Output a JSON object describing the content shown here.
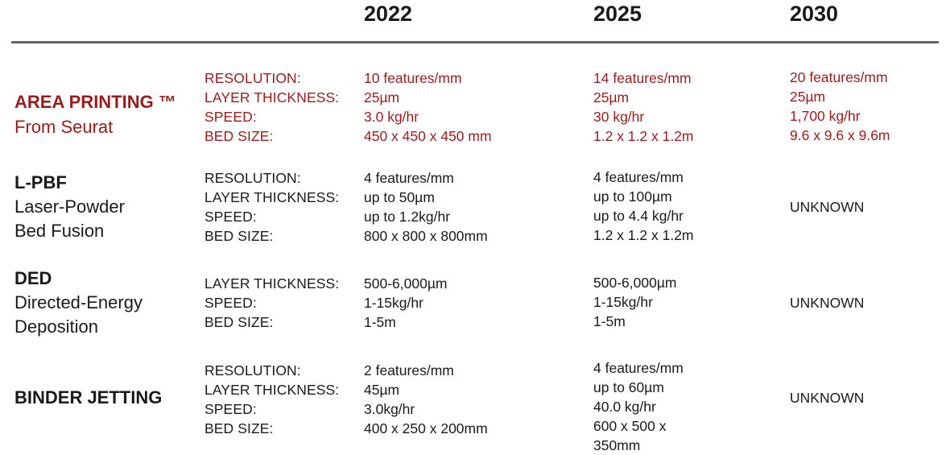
{
  "colors": {
    "accent": "#9b1c1c",
    "text": "#1a1a1a",
    "rule": "#666666"
  },
  "years": [
    "2022",
    "2025",
    "2030"
  ],
  "rows": [
    {
      "title": "AREA PRINTING ™",
      "subtitle": [
        "From Seurat"
      ],
      "labels": [
        "RESOLUTION:",
        "LAYER THICKNESS:",
        "SPEED:",
        "BED SIZE:"
      ],
      "v2022": [
        "10 features/mm",
        "25µm",
        "3.0 kg/hr",
        "450 x 450 x 450 mm"
      ],
      "v2025": [
        "14 features/mm",
        "25µm",
        "30 kg/hr",
        "1.2 x 1.2 x 1.2m"
      ],
      "v2030": [
        "20 features/mm",
        "25µm",
        "1,700 kg/hr",
        "9.6 x 9.6 x 9.6m"
      ]
    },
    {
      "title": "L-PBF",
      "subtitle": [
        "Laser-Powder",
        "Bed Fusion"
      ],
      "labels": [
        "RESOLUTION:",
        "LAYER THICKNESS:",
        "SPEED:",
        "BED SIZE:"
      ],
      "v2022": [
        "4 features/mm",
        "up to 50µm",
        "up to 1.2kg/hr",
        "800 x 800 x 800mm"
      ],
      "v2025": [
        "4 features/mm",
        "up to 100µm",
        "up to 4.4 kg/hr",
        "1.2 x 1.2 x 1.2m"
      ],
      "v2030": [
        "UNKNOWN"
      ]
    },
    {
      "title": "DED",
      "subtitle": [
        "Directed-Energy",
        "Deposition"
      ],
      "labels": [
        "LAYER THICKNESS:",
        "SPEED:",
        "BED SIZE:"
      ],
      "v2022": [
        "500-6,000µm",
        "1-15kg/hr",
        "1-5m"
      ],
      "v2025": [
        "500-6,000µm",
        "1-15kg/hr",
        "1-5m"
      ],
      "v2030": [
        "UNKNOWN"
      ]
    },
    {
      "title": "BINDER JETTING",
      "subtitle": [],
      "labels": [
        "RESOLUTION:",
        "LAYER THICKNESS:",
        "SPEED:",
        "BED SIZE:"
      ],
      "v2022": [
        "2 features/mm",
        "45µm",
        "3.0kg/hr",
        "400 x 250 x 200mm"
      ],
      "v2025": [
        "4 features/mm",
        "up to 60µm",
        "40.0 kg/hr",
        "600 x 500 x",
        "350mm"
      ],
      "v2030": [
        "UNKNOWN"
      ]
    }
  ]
}
